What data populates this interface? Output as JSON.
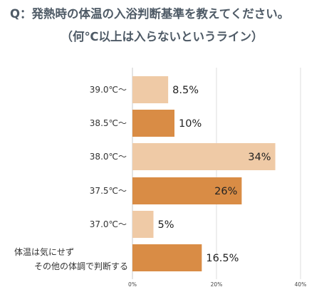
{
  "title": {
    "line1": "Q：発熱時の体温の入浴判断基準を教えてください。",
    "line2": "（何℃以上は入らないというライン）"
  },
  "chart_data": {
    "type": "bar",
    "orientation": "horizontal",
    "categories": [
      "39.0℃～",
      "38.5℃～",
      "38.0℃～",
      "37.5℃～",
      "37.0℃～",
      "体温は気にせず\nその他の体調で判断する"
    ],
    "values": [
      8.5,
      10,
      34,
      26,
      5,
      16.5
    ],
    "value_labels": [
      "8.5%",
      "10%",
      "34%",
      "26%",
      "5%",
      "16.5%"
    ],
    "xlim": [
      0,
      40
    ],
    "x_ticks": [
      "0%",
      "20%",
      "40%"
    ],
    "grid": true,
    "colors": {
      "light": "#efcaa6",
      "dark": "#d98c45",
      "grid": "#dedede",
      "axis": "#c8c8c8"
    },
    "bar_shades": [
      "light",
      "dark",
      "light",
      "dark",
      "light",
      "dark"
    ]
  }
}
